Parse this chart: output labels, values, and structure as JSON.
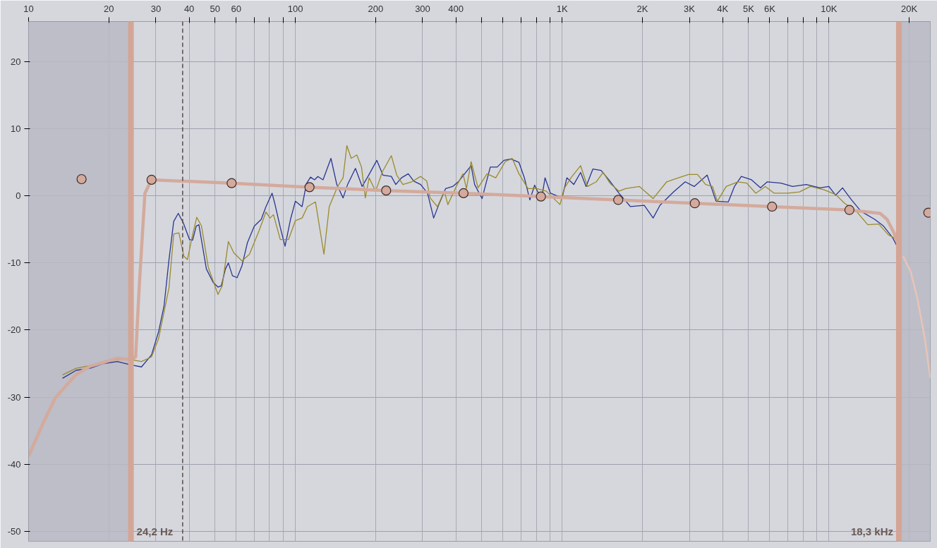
{
  "chart_data": {
    "type": "line",
    "log": "x",
    "grid": true,
    "marker": "none",
    "line_style": "solid",
    "xlim": [
      10,
      24000
    ],
    "ylim": [
      -51.5,
      26
    ],
    "xticks": [
      10,
      20,
      30,
      40,
      50,
      60,
      {
        "value": 70,
        "label": null
      },
      {
        "value": 80,
        "label": null
      },
      {
        "value": 90,
        "label": null
      },
      100,
      200,
      300,
      400,
      {
        "value": 500,
        "label": null
      },
      {
        "value": 600,
        "label": null
      },
      {
        "value": 700,
        "label": null
      },
      {
        "value": 800,
        "label": null
      },
      {
        "value": 900,
        "label": null
      },
      {
        "value": 1000,
        "label": "1K"
      },
      {
        "value": 2000,
        "label": "2K"
      },
      {
        "value": 3000,
        "label": "3K"
      },
      {
        "value": 4000,
        "label": "4K"
      },
      {
        "value": 5000,
        "label": "5K"
      },
      {
        "value": 6000,
        "label": "6K"
      },
      {
        "value": 7000,
        "label": null
      },
      {
        "value": 8000,
        "label": null
      },
      {
        "value": 9000,
        "label": null
      },
      {
        "value": 10000,
        "label": "10K"
      },
      {
        "value": 20000,
        "label": "20K"
      }
    ],
    "yticks": [
      -50,
      -40,
      -30,
      -20,
      -10,
      0,
      10,
      20
    ],
    "bands": [
      {
        "axis": "x",
        "from": 10,
        "to": 24.2,
        "color": "#b9bac4"
      },
      {
        "axis": "x",
        "from": 18300,
        "to": 24000,
        "color": "#b9bac4"
      }
    ],
    "ref_lines": [
      {
        "axis": "x",
        "value": 24.2,
        "label": "24,2 Hz",
        "color": "#d4a596",
        "line_style": "solid"
      },
      {
        "axis": "x",
        "value": 18300,
        "label": "18,3 kHz",
        "color": "#d4a596",
        "line_style": "solid"
      },
      {
        "axis": "x",
        "value": 37.8,
        "color": "#5a4a4a",
        "line_style": "dashed"
      }
    ],
    "series": [
      {
        "color": "#2a3591",
        "x": [
          13.4,
          15.1,
          17.0,
          19.1,
          21.5,
          24.2,
          26.5,
          28.9,
          30.7,
          32.2,
          33.6,
          35.0,
          36.4,
          38.0,
          40.1,
          41.2,
          42.5,
          43.5,
          45.1,
          46.4,
          49.2,
          51.3,
          52.8,
          54.7,
          56.1,
          58.1,
          60.5,
          63.1,
          66.1,
          70.2,
          74.5,
          77.6,
          81.8,
          83.7,
          87.8,
          91.5,
          95.9,
          100,
          106,
          110,
          114,
          118,
          121.5,
          127,
          136,
          143,
          151,
          157,
          168,
          178,
          189,
          202,
          213,
          229,
          238,
          250,
          265,
          278,
          295,
          313,
          330,
          345,
          366,
          389,
          408,
          456,
          470,
          501,
          538,
          571,
          605,
          642,
          689,
          722,
          757,
          789,
          837,
          863,
          904,
          1000,
          1042,
          1106,
          1173,
          1230,
          1304,
          1400,
          1511,
          1633,
          1804,
          2032,
          2194,
          2328,
          2619,
          2893,
          3126,
          3497,
          3776,
          4198,
          4426,
          4698,
          5129,
          5541,
          5877,
          6613,
          7311,
          8228,
          9261,
          10000,
          10607,
          11251,
          12159,
          13200,
          14851,
          16032,
          17310,
          18030
        ],
        "values": [
          -27.2,
          -26.0,
          -25.7,
          -25.0,
          -24.7,
          -25.2,
          -25.5,
          -23.7,
          -20.3,
          -16.4,
          -9.5,
          -3.8,
          -2.6,
          -4.0,
          -6.5,
          -6.6,
          -4.5,
          -4.3,
          -8.0,
          -10.9,
          -12.9,
          -13.6,
          -13.4,
          -10.9,
          -10.0,
          -11.9,
          -12.2,
          -10.4,
          -7.0,
          -4.5,
          -3.5,
          -1.6,
          0.4,
          -1.1,
          -4.7,
          -7.5,
          -3.5,
          -0.8,
          -1.6,
          1.8,
          2.8,
          2.4,
          2.9,
          2.4,
          5.6,
          1.7,
          -0.3,
          1.7,
          4.1,
          1.4,
          3.2,
          5.3,
          3.1,
          2.9,
          1.7,
          2.7,
          3.3,
          2.2,
          1.7,
          0.4,
          -3.3,
          -1.3,
          1.1,
          1.4,
          2.1,
          4.5,
          1.7,
          -0.4,
          4.3,
          4.3,
          5.3,
          5.5,
          5.0,
          2.7,
          -0.6,
          1.6,
          -0.6,
          2.7,
          0.4,
          -0.3,
          2.7,
          1.7,
          3.5,
          1.4,
          4.0,
          3.8,
          2.2,
          0.4,
          -1.6,
          -1.4,
          -3.3,
          -1.4,
          0.6,
          2.1,
          1.4,
          3.1,
          -0.8,
          -0.9,
          1.4,
          2.9,
          2.4,
          1.2,
          2.1,
          1.9,
          1.4,
          1.7,
          1.2,
          1.4,
          0.1,
          1.2,
          -0.6,
          -2.3,
          -3.5,
          -4.5,
          -6.2,
          -7.5
        ]
      },
      {
        "color": "#9b8a2a",
        "x": [
          13.4,
          15.1,
          17.0,
          19.1,
          21.5,
          24.2,
          26.5,
          28.9,
          30.7,
          32.2,
          33.6,
          35.0,
          36.6,
          38.2,
          39.4,
          41.2,
          42.7,
          44.5,
          47.2,
          51.3,
          53.2,
          56.1,
          58.8,
          63.1,
          67.3,
          73.1,
          77.6,
          80.4,
          82.8,
          87.8,
          94.3,
          100,
          106,
          111,
          119,
          128,
          134,
          144,
          151,
          156,
          162,
          170,
          177,
          183,
          189,
          200,
          212,
          229,
          240,
          253,
          273,
          295,
          311,
          320,
          341,
          362,
          373,
          401,
          425,
          438,
          456,
          484,
          523,
          564,
          612,
          650,
          689,
          745,
          804,
          873,
          982,
          1018,
          1079,
          1173,
          1245,
          1343,
          1425,
          1511,
          1633,
          1730,
          1950,
          2194,
          2466,
          2729,
          2979,
          3219,
          3451,
          3664,
          3818,
          4121,
          4560,
          4920,
          5321,
          5779,
          6237,
          7016,
          7762,
          8531,
          9598,
          10607,
          11455,
          12680,
          13993,
          15381,
          16706,
          17620
        ],
        "values": [
          -26.7,
          -25.7,
          -25.3,
          -24.7,
          -24.4,
          -24.4,
          -24.7,
          -24.0,
          -21.3,
          -17.3,
          -13.7,
          -5.7,
          -5.5,
          -9.0,
          -9.5,
          -5.8,
          -3.2,
          -4.5,
          -10.7,
          -14.7,
          -13.4,
          -6.8,
          -8.5,
          -9.7,
          -8.7,
          -5.2,
          -2.4,
          -3.3,
          -2.8,
          -6.5,
          -6.5,
          -3.7,
          -3.3,
          -1.6,
          -0.9,
          -8.7,
          -1.6,
          1.4,
          2.7,
          7.5,
          5.6,
          6.1,
          4.3,
          -0.3,
          2.7,
          0.7,
          3.6,
          6.0,
          3.1,
          1.7,
          2.1,
          2.9,
          2.2,
          -0.3,
          -1.6,
          0.7,
          -1.3,
          1.4,
          3.3,
          1.1,
          5.1,
          1.2,
          3.3,
          2.7,
          5.1,
          5.6,
          3.3,
          1.1,
          1.1,
          0.7,
          -1.3,
          1.1,
          2.7,
          4.5,
          1.4,
          2.1,
          3.5,
          1.9,
          0.7,
          1.1,
          1.4,
          -0.4,
          2.1,
          2.7,
          3.2,
          3.2,
          1.7,
          1.4,
          -0.8,
          1.4,
          2.1,
          1.9,
          0.4,
          1.4,
          0.4,
          0.4,
          0.6,
          1.4,
          0.9,
          0.2,
          -1.1,
          -2.3,
          -4.3,
          -4.2,
          -5.8,
          -6.3
        ]
      },
      {
        "color": "#d4aa9c",
        "x": [
          10,
          11.3,
          12.6,
          15,
          17,
          19.2,
          21.5,
          24.2,
          25.2,
          26.0,
          27.3,
          28.9,
          57.7,
          113,
          219,
          427,
          833,
          1623,
          3143,
          6124,
          11940,
          15560,
          16520,
          17540,
          18370
        ],
        "values": [
          -38.8,
          -34,
          -30.1,
          -26.7,
          -25.4,
          -24.8,
          -24.2,
          -24.4,
          -24,
          -13.4,
          0.4,
          2.4,
          1.9,
          1.3,
          0.8,
          0.4,
          -0.1,
          -0.6,
          -1.1,
          -1.6,
          -2.1,
          -2.6,
          -3.5,
          -5.5,
          -7.8
        ]
      },
      {
        "color": "#e8c4b8",
        "x": [
          19000,
          20300,
          21500,
          22900,
          24000
        ],
        "values": [
          -9,
          -11.4,
          -15.4,
          -21.3,
          -27.2
        ]
      },
      {
        "type": "scatter",
        "marker": "circle",
        "color": "#d4aa9c",
        "x": [
          15.8,
          28.9,
          57.7,
          113,
          219,
          427,
          833,
          1623,
          3143,
          6124,
          11940,
          23600
        ],
        "values": [
          2.5,
          2.4,
          1.9,
          1.3,
          0.8,
          0.4,
          -0.1,
          -0.6,
          -1.1,
          -1.6,
          -2.1,
          -2.5
        ]
      }
    ]
  }
}
